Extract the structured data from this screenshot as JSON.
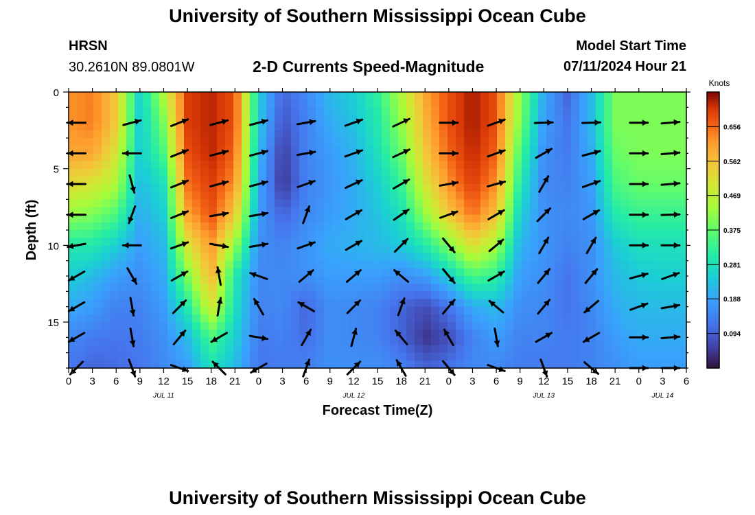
{
  "header": {
    "title": "University of Southern Mississippi Ocean Cube",
    "station_code": "HRSN",
    "station_location": "30.2610N  89.0801W",
    "plot_title": "2-D Currents Speed-Magnitude",
    "model_start_label": "Model Start Time",
    "model_start_value": "07/11/2024 Hour 21",
    "footer_title": "University of Southern Mississippi Ocean Cube"
  },
  "chart_data": {
    "type": "heatmap",
    "title": "2-D Currents Speed-Magnitude",
    "xlabel": "Forecast Time(Z)",
    "ylabel": "Depth (ft)",
    "colorbar_label": "Knots",
    "colorbar_ticks": [
      "0.094",
      "0.188",
      "0.281",
      "0.375",
      "0.469",
      "0.562",
      "0.656"
    ],
    "colorbar_range": [
      0,
      0.75
    ],
    "x_range_hours": [
      0,
      78
    ],
    "y_range_ft": [
      0,
      18
    ],
    "x_tick_labels": [
      "0",
      "3",
      "6",
      "9",
      "12",
      "15",
      "18",
      "21",
      "0",
      "3",
      "6",
      "9",
      "12",
      "15",
      "18",
      "21",
      "0",
      "3",
      "6",
      "9",
      "12",
      "15",
      "18",
      "21",
      "0",
      "3",
      "6"
    ],
    "y_tick_labels": [
      "0",
      "5",
      "10",
      "15"
    ],
    "y_tick_values": [
      0,
      5,
      10,
      15
    ],
    "date_labels": [
      {
        "label": "JUL 11",
        "hour": 12
      },
      {
        "label": "JUL 12",
        "hour": 36
      },
      {
        "label": "JUL 13",
        "hour": 60
      },
      {
        "label": "JUL 14",
        "hour": 75
      }
    ],
    "x_hours": [
      0,
      3,
      6,
      9,
      12,
      15,
      18,
      21,
      24,
      27,
      30,
      33,
      36,
      39,
      42,
      45,
      48,
      51,
      54,
      57,
      60,
      63,
      66,
      69,
      72,
      75,
      78
    ],
    "depth_profiles": {
      "depths_ft": [
        0,
        2,
        4,
        6,
        8,
        10,
        12,
        14,
        16,
        18
      ],
      "speed_knots_by_time": [
        [
          0.62,
          0.62,
          0.6,
          0.52,
          0.42,
          0.3,
          0.25,
          0.2,
          0.15,
          0.12
        ],
        [
          0.64,
          0.64,
          0.6,
          0.5,
          0.4,
          0.3,
          0.22,
          0.18,
          0.13,
          0.1
        ],
        [
          0.55,
          0.55,
          0.5,
          0.45,
          0.35,
          0.25,
          0.18,
          0.14,
          0.12,
          0.11
        ],
        [
          0.25,
          0.24,
          0.24,
          0.22,
          0.2,
          0.18,
          0.16,
          0.14,
          0.13,
          0.12
        ],
        [
          0.45,
          0.4,
          0.35,
          0.28,
          0.25,
          0.22,
          0.2,
          0.18,
          0.16,
          0.15
        ],
        [
          0.7,
          0.7,
          0.68,
          0.65,
          0.6,
          0.5,
          0.4,
          0.3,
          0.22,
          0.18
        ],
        [
          0.72,
          0.72,
          0.72,
          0.7,
          0.68,
          0.62,
          0.58,
          0.5,
          0.35,
          0.28
        ],
        [
          0.68,
          0.68,
          0.66,
          0.62,
          0.55,
          0.42,
          0.3,
          0.28,
          0.25,
          0.22
        ],
        [
          0.25,
          0.24,
          0.22,
          0.2,
          0.18,
          0.16,
          0.15,
          0.14,
          0.13,
          0.12
        ],
        [
          0.1,
          0.08,
          0.05,
          0.04,
          0.1,
          0.14,
          0.15,
          0.15,
          0.14,
          0.13
        ],
        [
          0.15,
          0.14,
          0.14,
          0.14,
          0.15,
          0.17,
          0.16,
          0.1,
          0.11,
          0.14
        ],
        [
          0.22,
          0.2,
          0.18,
          0.17,
          0.18,
          0.2,
          0.18,
          0.16,
          0.16,
          0.16
        ],
        [
          0.25,
          0.23,
          0.21,
          0.2,
          0.2,
          0.21,
          0.18,
          0.15,
          0.15,
          0.16
        ],
        [
          0.32,
          0.3,
          0.28,
          0.25,
          0.23,
          0.22,
          0.18,
          0.14,
          0.14,
          0.16
        ],
        [
          0.45,
          0.42,
          0.38,
          0.33,
          0.28,
          0.24,
          0.16,
          0.1,
          0.1,
          0.14
        ],
        [
          0.6,
          0.58,
          0.55,
          0.5,
          0.42,
          0.3,
          0.18,
          0.07,
          0.04,
          0.1
        ],
        [
          0.68,
          0.68,
          0.66,
          0.62,
          0.55,
          0.4,
          0.25,
          0.12,
          0.07,
          0.12
        ],
        [
          0.73,
          0.73,
          0.72,
          0.7,
          0.65,
          0.52,
          0.35,
          0.2,
          0.14,
          0.15
        ],
        [
          0.68,
          0.68,
          0.66,
          0.62,
          0.56,
          0.44,
          0.32,
          0.22,
          0.18,
          0.15
        ],
        [
          0.42,
          0.4,
          0.35,
          0.3,
          0.25,
          0.21,
          0.18,
          0.16,
          0.14,
          0.13
        ],
        [
          0.2,
          0.18,
          0.16,
          0.15,
          0.16,
          0.17,
          0.16,
          0.15,
          0.14,
          0.13
        ],
        [
          0.1,
          0.12,
          0.13,
          0.14,
          0.15,
          0.14,
          0.12,
          0.12,
          0.13,
          0.13
        ],
        [
          0.22,
          0.22,
          0.2,
          0.18,
          0.17,
          0.16,
          0.16,
          0.15,
          0.14,
          0.14
        ],
        [
          0.4,
          0.4,
          0.38,
          0.35,
          0.3,
          0.24,
          0.22,
          0.2,
          0.18,
          0.16
        ],
        [
          0.4,
          0.4,
          0.4,
          0.38,
          0.33,
          0.28,
          0.24,
          0.22,
          0.2,
          0.18
        ],
        [
          0.4,
          0.4,
          0.4,
          0.38,
          0.33,
          0.28,
          0.25,
          0.22,
          0.2,
          0.18
        ],
        [
          0.4,
          0.4,
          0.4,
          0.38,
          0.33,
          0.28,
          0.25,
          0.22,
          0.2,
          0.18
        ]
      ]
    },
    "vectors": {
      "hours": [
        1,
        8,
        14,
        19,
        24,
        30,
        36,
        42,
        48,
        54,
        60,
        66,
        72,
        76
      ],
      "depths_ft": [
        2,
        4,
        6,
        8,
        10,
        12,
        14,
        16,
        18
      ],
      "direction_deg_to": [
        [
          -90,
          75,
          68,
          75,
          75,
          80,
          70,
          65,
          90,
          70,
          88,
          88,
          90,
          85
        ],
        [
          -90,
          -90,
          68,
          75,
          75,
          80,
          70,
          65,
          90,
          70,
          60,
          75,
          90,
          85
        ],
        [
          -90,
          165,
          68,
          75,
          75,
          70,
          65,
          60,
          80,
          75,
          30,
          70,
          90,
          85
        ],
        [
          -90,
          -160,
          68,
          80,
          80,
          20,
          60,
          55,
          70,
          60,
          45,
          60,
          90,
          88
        ],
        [
          -100,
          -90,
          70,
          100,
          80,
          70,
          60,
          45,
          140,
          50,
          30,
          30,
          90,
          90
        ],
        [
          -120,
          150,
          60,
          -10,
          -70,
          50,
          50,
          -50,
          140,
          60,
          40,
          40,
          75,
          70
        ],
        [
          -120,
          170,
          45,
          10,
          -30,
          -60,
          45,
          20,
          40,
          -50,
          40,
          -130,
          70,
          80
        ],
        [
          -120,
          170,
          40,
          -120,
          100,
          30,
          15,
          -40,
          -30,
          170,
          60,
          -120,
          90,
          85
        ],
        [
          -135,
          160,
          110,
          -45,
          -120,
          20,
          45,
          -30,
          140,
          110,
          160,
          130,
          90,
          90
        ]
      ]
    }
  }
}
